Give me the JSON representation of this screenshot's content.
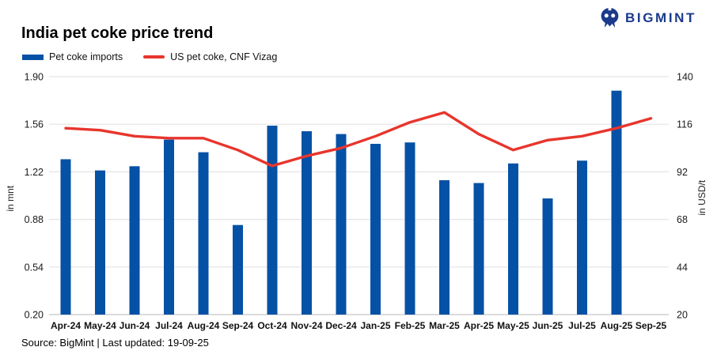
{
  "header": {
    "title": "India pet coke price trend",
    "brand": "BIGMINT"
  },
  "footer": {
    "source": "Source: BigMint | Last updated: 19-09-25"
  },
  "colors": {
    "bar_blue": "#0551a5",
    "line_red": "#e8352c",
    "brand_navy": "#1b3a8c",
    "grid": "#e4e4e4",
    "axis_line": "#c9c9c9",
    "text": "#1a1a1a"
  },
  "chart_data": {
    "type": "bar+line",
    "title": "India pet coke price trend",
    "grid": true,
    "legend_position": "top-left",
    "categories": [
      "Apr-24",
      "May-24",
      "Jun-24",
      "Jul-24",
      "Aug-24",
      "Sep-24",
      "Oct-24",
      "Nov-24",
      "Dec-24",
      "Jan-25",
      "Feb-25",
      "Mar-25",
      "Apr-25",
      "May-25",
      "Jun-25",
      "Jul-25",
      "Aug-25",
      "Sep-25"
    ],
    "series": [
      {
        "name": "Pet coke imports",
        "type": "bar",
        "axis": "left",
        "color": "#0551a5",
        "values": [
          1.31,
          1.23,
          1.26,
          1.45,
          1.36,
          0.84,
          1.55,
          1.51,
          1.49,
          1.42,
          1.43,
          1.16,
          1.14,
          1.28,
          1.03,
          1.3,
          1.8,
          null
        ]
      },
      {
        "name": "US pet coke, CNF Vizag",
        "type": "line",
        "axis": "right",
        "color": "#e8352c",
        "values": [
          114,
          113,
          110,
          109,
          109,
          103,
          95,
          100,
          104,
          110,
          117,
          122,
          111,
          103,
          108,
          110,
          114,
          119
        ]
      }
    ],
    "left_axis": {
      "label": "in mnt",
      "min": 0.2,
      "max": 1.9,
      "ticks": [
        "1.90",
        "1.56",
        "1.22",
        "0.88",
        "0.54",
        "0.20"
      ]
    },
    "right_axis": {
      "label": "in USD/t",
      "min": 20,
      "max": 140,
      "ticks": [
        "140",
        "116",
        "92",
        "68",
        "44",
        "20"
      ]
    }
  }
}
